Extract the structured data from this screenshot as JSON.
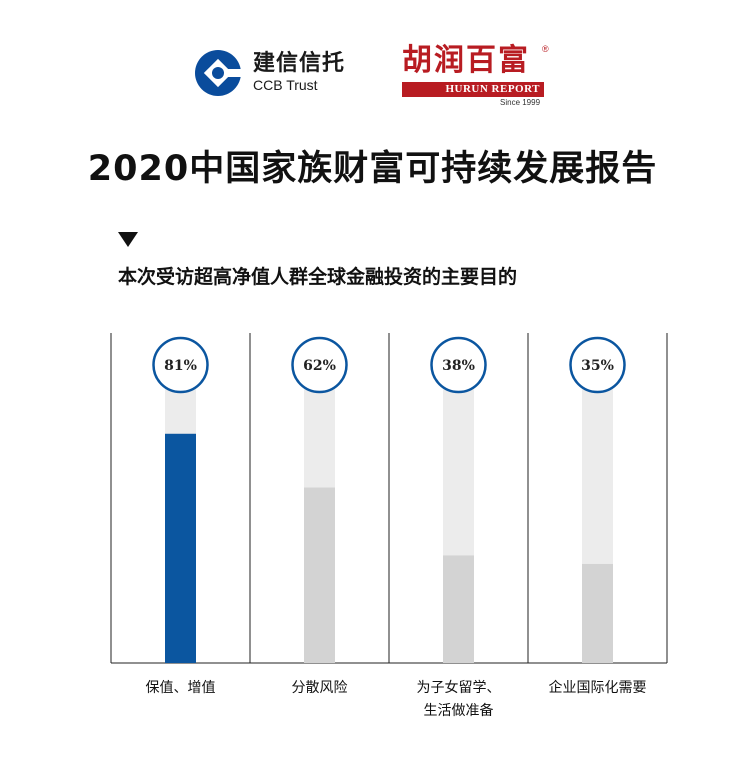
{
  "header": {
    "ccb_name_cn": "建信信托",
    "ccb_name_en": "CCB Trust",
    "hurun_name_cn": "胡润百富",
    "hurun_reg": "®",
    "hurun_name_en": "HURUN REPORT",
    "hurun_since": "Since 1999"
  },
  "title": "2020中国家族财富可持续发展报告",
  "subtitle": "本次受访超高净值人群全球金融投资的主要目的",
  "colors": {
    "highlight": "#0b56a0",
    "bar_gray": "#d3d3d3",
    "track_gray": "#ececec",
    "circle_border": "#0b56a0",
    "ccb_blue": "#0a4c9c",
    "hurun_red": "#b81c22"
  },
  "chart_data": {
    "type": "bar",
    "title": "本次受访超高净值人群全球金融投资的主要目的",
    "categories": [
      [
        "保值、增值"
      ],
      [
        "分散风险"
      ],
      [
        "为子女留学、",
        "生活做准备"
      ],
      [
        "企业国际化需要"
      ]
    ],
    "values": [
      81,
      62,
      38,
      35
    ],
    "value_labels": [
      "81%",
      "62%",
      "38%",
      "35%"
    ],
    "unit": "%",
    "ylim": [
      0,
      100
    ],
    "grid": false,
    "legend": "none",
    "highlight_index": 0
  }
}
